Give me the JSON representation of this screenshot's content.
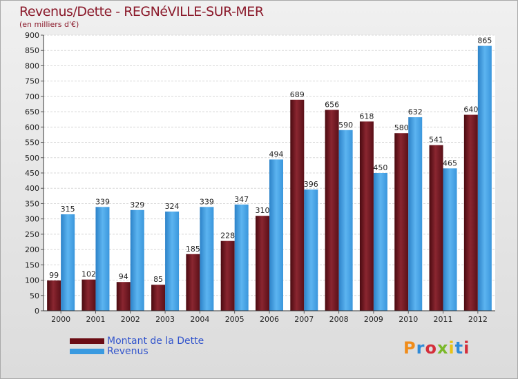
{
  "title": "Revenus/Dette - REGNéVILLE-SUR-MER",
  "subtitle": "(en milliers d'€)",
  "logo": {
    "text": "Proxiti",
    "colors": [
      "#f08c1a",
      "#2e8ad8",
      "#d42e3a",
      "#7ab829",
      "#e8c215",
      "#2e8ad8",
      "#d42e3a"
    ]
  },
  "chart_data": {
    "type": "bar",
    "categories": [
      "2000",
      "2001",
      "2002",
      "2003",
      "2004",
      "2005",
      "2006",
      "2007",
      "2008",
      "2009",
      "2010",
      "2011",
      "2012"
    ],
    "series": [
      {
        "name": "Montant de la Dette",
        "color": "#7a1a22",
        "values": [
          99,
          102,
          94,
          85,
          185,
          228,
          310,
          689,
          656,
          618,
          580,
          541,
          640
        ]
      },
      {
        "name": "Revenus",
        "color": "#3a9ae0",
        "values": [
          315,
          339,
          329,
          324,
          339,
          347,
          494,
          396,
          590,
          450,
          632,
          465,
          865
        ]
      }
    ],
    "ylim": [
      0,
      900
    ],
    "yticks": [
      0,
      50,
      100,
      150,
      200,
      250,
      300,
      350,
      400,
      450,
      500,
      550,
      600,
      650,
      700,
      750,
      800,
      850,
      900
    ],
    "grid": true,
    "legend": "bottom-left"
  }
}
